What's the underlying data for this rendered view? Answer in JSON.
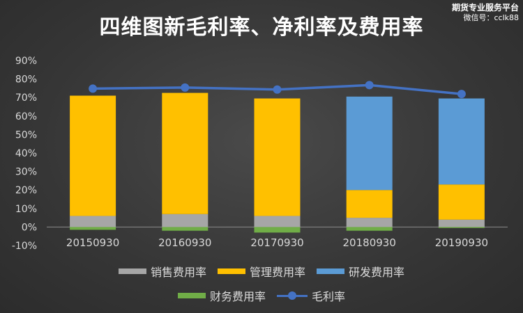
{
  "chart_data": {
    "type": "bar",
    "stacked": true,
    "title": "四维图新毛利率、净利率及费用率",
    "categories": [
      "20150930",
      "20160930",
      "20170930",
      "20180930",
      "20190930"
    ],
    "series": [
      {
        "name": "销售费用率",
        "kind": "bar",
        "color": "#a6a6a6",
        "values": [
          0.06,
          0.07,
          0.06,
          0.05,
          0.04
        ]
      },
      {
        "name": "管理费用率",
        "kind": "bar",
        "color": "#ffc000",
        "values": [
          0.65,
          0.655,
          0.635,
          0.15,
          0.19
        ]
      },
      {
        "name": "研发费用率",
        "kind": "bar",
        "color": "#5b9bd5",
        "values": [
          0.0,
          0.0,
          0.0,
          0.505,
          0.465
        ]
      },
      {
        "name": "财务费用率",
        "kind": "bar",
        "color": "#70ad47",
        "values": [
          -0.015,
          -0.02,
          -0.03,
          -0.02,
          -0.005
        ]
      },
      {
        "name": "毛利率",
        "kind": "line",
        "color": "#4472c4",
        "values": [
          0.748,
          0.754,
          0.743,
          0.767,
          0.719
        ]
      }
    ],
    "ylim": [
      -0.1,
      0.9
    ],
    "yticks": [
      "-10%",
      "0%",
      "10%",
      "20%",
      "30%",
      "40%",
      "50%",
      "60%",
      "70%",
      "80%",
      "90%"
    ],
    "grid": false,
    "legend_position": "bottom"
  },
  "brand": {
    "line1": "期货专业服务平台",
    "line2": "微信号：cclk88"
  }
}
